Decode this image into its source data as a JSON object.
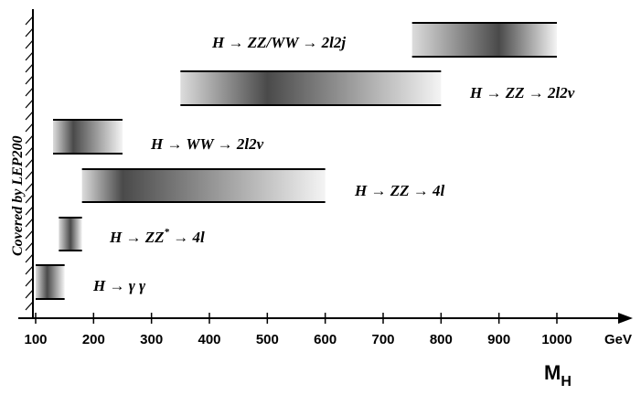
{
  "chart_data": {
    "type": "range-bar",
    "title": "",
    "xlabel": "M_H",
    "x_unit": "GeV",
    "xlim": [
      100,
      1000
    ],
    "ticks": [
      100,
      200,
      300,
      400,
      500,
      600,
      700,
      800,
      900,
      1000
    ],
    "tick_labels": [
      "100",
      "200",
      "300",
      "400",
      "500",
      "600",
      "700",
      "800",
      "900",
      "1000"
    ],
    "excluded_region_label": "Covered by LEP200",
    "axis_title": {
      "main": "M",
      "sub": "H"
    },
    "channels": [
      {
        "label": "H → γ γ",
        "min": 100,
        "max": 150,
        "peak": 120
      },
      {
        "label": "H → ZZ* → 4l",
        "min": 140,
        "max": 180,
        "peak": 160
      },
      {
        "label": "H → ZZ → 4l",
        "min": 180,
        "max": 600,
        "peak": 250
      },
      {
        "label": "H → WW → 2l2ν",
        "min": 130,
        "max": 250,
        "peak": 165
      },
      {
        "label": "H → ZZ → 2l2ν",
        "min": 350,
        "max": 800,
        "peak": 500
      },
      {
        "label": "H → ZZ/WW → 2l2j",
        "min": 750,
        "max": 1000,
        "peak": 900
      }
    ]
  }
}
